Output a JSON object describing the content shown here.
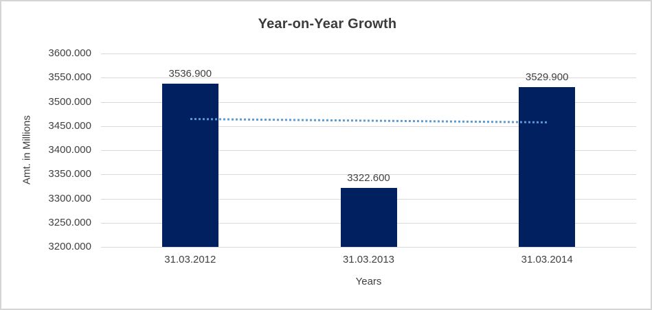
{
  "chart_data": {
    "type": "bar",
    "title": "Year-on-Year Growth",
    "xlabel": "Years",
    "ylabel": "Amt. in Millions",
    "categories": [
      "31.03.2012",
      "31.03.2013",
      "31.03.2014"
    ],
    "values": [
      3536.9,
      3322.6,
      3529.9
    ],
    "data_labels": [
      "3536.900",
      "3322.600",
      "3529.900"
    ],
    "ytick_labels": [
      "3600.000",
      "3550.000",
      "3500.000",
      "3450.000",
      "3400.000",
      "3350.000",
      "3300.000",
      "3250.000",
      "3200.000"
    ],
    "ylim": [
      3200,
      3600
    ],
    "ytick_step": 50,
    "grid": true,
    "legend": "none",
    "value_decimals": 3,
    "trendline": {
      "type": "linear",
      "style": "dotted",
      "color": "#5b9bd5",
      "endpoint_values": [
        3466.6,
        3459.6
      ]
    },
    "colors": {
      "bar": "#002060",
      "gridline": "#d9d9d9",
      "text": "#404040",
      "title": "#3b3b3b",
      "trendline": "#5b9bd5",
      "background": "#ffffff",
      "border": "#d5d5d5"
    }
  }
}
